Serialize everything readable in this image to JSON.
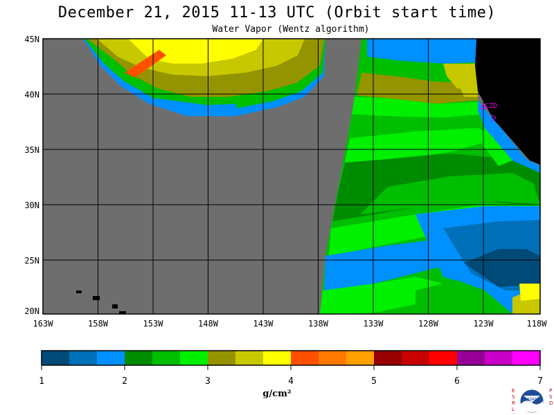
{
  "title": "December 21, 2015  11-13 UTC  (Orbit start time)",
  "subtitle": "Water Vapor (Wentz algorithm)",
  "map": {
    "lat_labels": [
      "45N",
      "40N",
      "35N",
      "30N",
      "25N",
      "20N"
    ],
    "lon_labels": [
      "163W",
      "158W",
      "153W",
      "148W",
      "143W",
      "138W",
      "133W",
      "128W",
      "123W",
      "118W"
    ],
    "station_label": "CZD",
    "colors": {
      "no_data": "#6e6e6e",
      "land": "#000000",
      "station": "#e600e6"
    }
  },
  "colorbar": {
    "labels": [
      "1",
      "2",
      "3",
      "4",
      "5",
      "6",
      "7"
    ],
    "units": "g/cm²",
    "colors": [
      "#004a78",
      "#0070b8",
      "#0090ff",
      "#008c00",
      "#00be00",
      "#00f000",
      "#949400",
      "#c8c800",
      "#ffff00",
      "#ff5000",
      "#ff7800",
      "#ffa000",
      "#960000",
      "#c80000",
      "#ff0000",
      "#960096",
      "#c800c8",
      "#ff00ff"
    ]
  },
  "logo": {
    "left_text": "ESRL",
    "right_text": "PSD",
    "center_text": "NOAA"
  }
}
